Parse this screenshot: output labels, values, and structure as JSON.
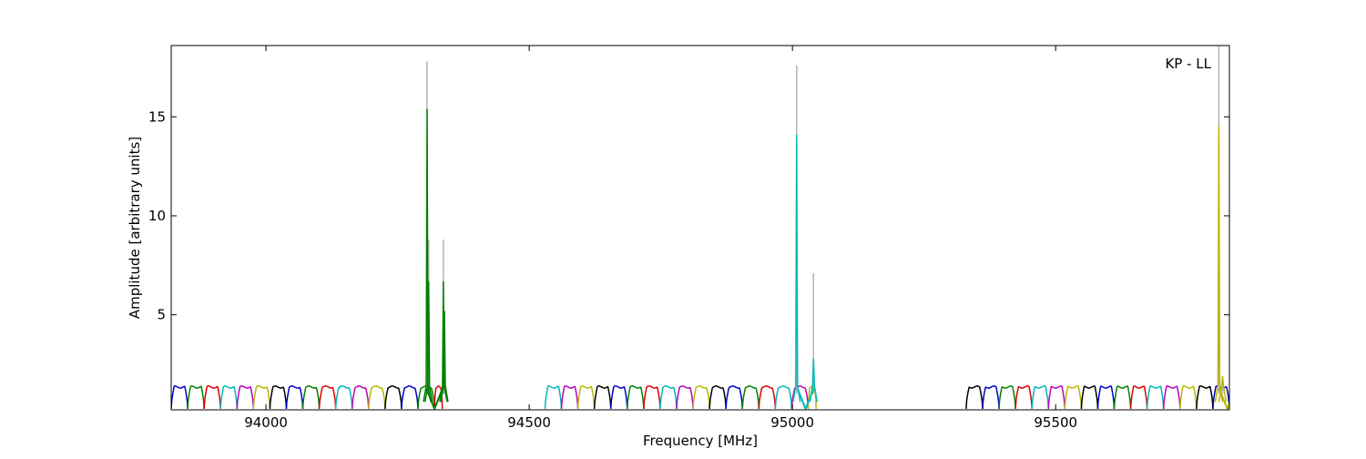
{
  "chart_data": {
    "type": "line",
    "title": "",
    "annotation": "KP - LL",
    "xlabel": "Frequency [MHz]",
    "ylabel": "Amplitude [arbitrary units]",
    "xlim": [
      93820,
      95830
    ],
    "ylim": [
      0.2,
      18.6
    ],
    "xticks": [
      94000,
      94500,
      95000,
      95500
    ],
    "yticks": [
      5,
      10,
      15
    ],
    "grid": false,
    "legend": "none",
    "channel_colors": [
      "#0000cc",
      "#008000",
      "#dd0000",
      "#00b8b8",
      "#bb00bb",
      "#b8b800",
      "#000000"
    ],
    "peak_trace_color": "#b4b4b4",
    "bands": [
      {
        "start": 93820,
        "end": 94335,
        "channel_width": 31.25,
        "baseline_max": 1.35,
        "baseline_min": 0.25
      },
      {
        "start": 94530,
        "end": 95045,
        "channel_width": 31.25,
        "baseline_max": 1.35,
        "baseline_min": 0.25
      },
      {
        "start": 95330,
        "end": 95830,
        "channel_width": 31.25,
        "baseline_max": 1.35,
        "baseline_min": 0.25
      }
    ],
    "lines": [
      {
        "freq": 94306,
        "peak": 15.4,
        "raw_peak": 17.8,
        "color": "#008000"
      },
      {
        "freq": 94309,
        "peak": 6.7,
        "raw_peak": 8.8,
        "color": "#008000"
      },
      {
        "freq": 94337,
        "peak": 6.7,
        "raw_peak": 8.8,
        "color": "#008000"
      },
      {
        "freq": 94339,
        "peak": 5.2,
        "raw_peak": 5.2,
        "color": "#008000"
      },
      {
        "freq": 95008,
        "peak": 14.1,
        "raw_peak": 17.6,
        "color": "#00b8b8"
      },
      {
        "freq": 95040,
        "peak": 2.8,
        "raw_peak": 7.1,
        "color": "#00b8b8"
      },
      {
        "freq": 95810,
        "peak": 14.5,
        "raw_peak": 18.6,
        "color": "#b8b800"
      },
      {
        "freq": 95817,
        "peak": 1.9,
        "raw_peak": 1.9,
        "color": "#b8b800"
      }
    ]
  }
}
